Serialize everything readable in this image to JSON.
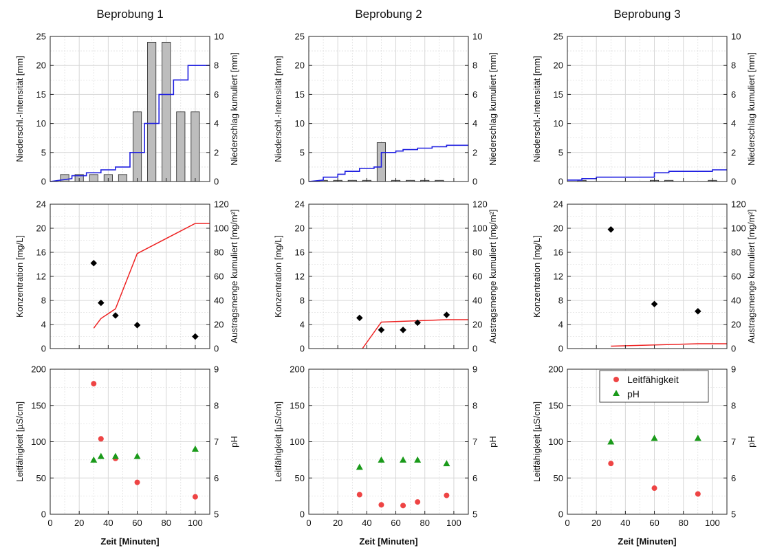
{
  "colors": {
    "bar_fill": "#bdbdbd",
    "bar_stroke": "#333333",
    "cumulative_rain": "#1f1fe0",
    "cumulative_load": "#ee2222",
    "concentration": "#000000",
    "conductivity": "#ee4444",
    "ph": "#1a9a1a",
    "grid": "#d6d6d6"
  },
  "labels": {
    "rain_left": "Niederschl.-Intensität [mm]",
    "rain_right": "Niederschlag kumuliert [mm]",
    "conc_left": "Konzentration [mg/L]",
    "conc_right": "Austragsmenge kumuliert [mg/m²]",
    "cond_left": "Leitfähigkeit [µS/cm]",
    "cond_right": "pH",
    "x": "Zeit [Minuten]"
  },
  "legend": {
    "conductivity": "Leitfähigkeit",
    "ph": "pH"
  },
  "chart_data": [
    {
      "title": "Beprobung 1",
      "rain": {
        "type": "bar",
        "ylim_left": [
          0,
          25
        ],
        "ylim_right": [
          0,
          10
        ],
        "bars": [
          {
            "x": 10,
            "y": 1.2
          },
          {
            "x": 20,
            "y": 1.2
          },
          {
            "x": 30,
            "y": 1.2
          },
          {
            "x": 40,
            "y": 1.2
          },
          {
            "x": 50,
            "y": 1.2
          },
          {
            "x": 60,
            "y": 12
          },
          {
            "x": 70,
            "y": 24
          },
          {
            "x": 80,
            "y": 24
          },
          {
            "x": 90,
            "y": 12
          },
          {
            "x": 100,
            "y": 12
          }
        ],
        "cumulative": [
          [
            0,
            0
          ],
          [
            15,
            0.2
          ],
          [
            15,
            0.4
          ],
          [
            25,
            0.4
          ],
          [
            25,
            0.6
          ],
          [
            35,
            0.6
          ],
          [
            35,
            0.8
          ],
          [
            45,
            0.8
          ],
          [
            45,
            1.0
          ],
          [
            55,
            1.0
          ],
          [
            55,
            2.0
          ],
          [
            65,
            2.0
          ],
          [
            65,
            4.0
          ],
          [
            75,
            4.0
          ],
          [
            75,
            6.0
          ],
          [
            85,
            6.0
          ],
          [
            85,
            7.0
          ],
          [
            95,
            7.0
          ],
          [
            95,
            8.0
          ],
          [
            110,
            8.0
          ]
        ]
      },
      "concentration": {
        "type": "scatter",
        "ylim_left": [
          0,
          24
        ],
        "ylim_right": [
          0,
          120
        ],
        "points": [
          [
            30,
            14.2
          ],
          [
            35,
            7.6
          ],
          [
            45,
            5.5
          ],
          [
            60,
            3.9
          ],
          [
            100,
            2.0
          ]
        ],
        "cumulative_load": [
          [
            30,
            17
          ],
          [
            35,
            25
          ],
          [
            45,
            33
          ],
          [
            60,
            79
          ],
          [
            100,
            104
          ],
          [
            110,
            104
          ]
        ]
      },
      "conductivity": {
        "type": "scatter",
        "ylim_left": [
          0,
          200
        ],
        "ylim_right": [
          5,
          9
        ],
        "conductivity": [
          [
            30,
            180
          ],
          [
            35,
            104
          ],
          [
            45,
            77
          ],
          [
            60,
            44
          ],
          [
            100,
            24
          ]
        ],
        "ph": [
          [
            30,
            6.5
          ],
          [
            35,
            6.6
          ],
          [
            45,
            6.6
          ],
          [
            60,
            6.6
          ],
          [
            100,
            6.8
          ]
        ]
      }
    },
    {
      "title": "Beprobung 2",
      "rain": {
        "type": "bar",
        "ylim_left": [
          0,
          25
        ],
        "ylim_right": [
          0,
          10
        ],
        "bars": [
          {
            "x": 10,
            "y": 0.2
          },
          {
            "x": 20,
            "y": 0.2
          },
          {
            "x": 30,
            "y": 0.2
          },
          {
            "x": 40,
            "y": 0.2
          },
          {
            "x": 50,
            "y": 6.7
          },
          {
            "x": 60,
            "y": 0.2
          },
          {
            "x": 70,
            "y": 0.2
          },
          {
            "x": 80,
            "y": 0.2
          },
          {
            "x": 90,
            "y": 0.2
          }
        ],
        "cumulative": [
          [
            0,
            0
          ],
          [
            10,
            0.1
          ],
          [
            10,
            0.3
          ],
          [
            20,
            0.3
          ],
          [
            20,
            0.5
          ],
          [
            25,
            0.5
          ],
          [
            25,
            0.7
          ],
          [
            35,
            0.7
          ],
          [
            35,
            0.9
          ],
          [
            45,
            0.9
          ],
          [
            45,
            1.0
          ],
          [
            50,
            1.0
          ],
          [
            50,
            2.0
          ],
          [
            60,
            2.0
          ],
          [
            60,
            2.1
          ],
          [
            65,
            2.1
          ],
          [
            65,
            2.2
          ],
          [
            75,
            2.2
          ],
          [
            75,
            2.3
          ],
          [
            85,
            2.3
          ],
          [
            85,
            2.4
          ],
          [
            95,
            2.4
          ],
          [
            95,
            2.5
          ],
          [
            110,
            2.5
          ]
        ]
      },
      "concentration": {
        "type": "scatter",
        "ylim_left": [
          0,
          24
        ],
        "ylim_right": [
          0,
          120
        ],
        "points": [
          [
            35,
            5.1
          ],
          [
            50,
            3.1
          ],
          [
            65,
            3.1
          ],
          [
            75,
            4.3
          ],
          [
            95,
            5.6
          ]
        ],
        "cumulative_load": [
          [
            37,
            0
          ],
          [
            50,
            22
          ],
          [
            95,
            24
          ],
          [
            110,
            24
          ]
        ]
      },
      "conductivity": {
        "type": "scatter",
        "ylim_left": [
          0,
          200
        ],
        "ylim_right": [
          5,
          9
        ],
        "conductivity": [
          [
            35,
            27
          ],
          [
            50,
            13
          ],
          [
            65,
            12
          ],
          [
            75,
            17
          ],
          [
            95,
            26
          ]
        ],
        "ph": [
          [
            35,
            6.3
          ],
          [
            50,
            6.5
          ],
          [
            65,
            6.5
          ],
          [
            75,
            6.5
          ],
          [
            95,
            6.4
          ]
        ]
      }
    },
    {
      "title": "Beprobung 3",
      "rain": {
        "type": "bar",
        "ylim_left": [
          0,
          25
        ],
        "ylim_right": [
          0,
          10
        ],
        "bars": [
          {
            "x": 10,
            "y": 0.2
          },
          {
            "x": 60,
            "y": 0.2
          },
          {
            "x": 70,
            "y": 0.2
          },
          {
            "x": 100,
            "y": 0.2
          }
        ],
        "cumulative": [
          [
            0,
            0.1
          ],
          [
            10,
            0.1
          ],
          [
            10,
            0.2
          ],
          [
            20,
            0.2
          ],
          [
            20,
            0.3
          ],
          [
            60,
            0.3
          ],
          [
            60,
            0.6
          ],
          [
            70,
            0.6
          ],
          [
            70,
            0.7
          ],
          [
            100,
            0.7
          ],
          [
            100,
            0.8
          ],
          [
            110,
            0.8
          ]
        ]
      },
      "concentration": {
        "type": "scatter",
        "ylim_left": [
          0,
          24
        ],
        "ylim_right": [
          0,
          120
        ],
        "points": [
          [
            30,
            19.8
          ],
          [
            60,
            7.4
          ],
          [
            90,
            6.2
          ]
        ],
        "cumulative_load": [
          [
            30,
            2
          ],
          [
            60,
            3
          ],
          [
            90,
            4
          ],
          [
            110,
            4
          ]
        ]
      },
      "conductivity": {
        "type": "scatter",
        "ylim_left": [
          0,
          200
        ],
        "ylim_right": [
          5,
          9
        ],
        "conductivity": [
          [
            30,
            70
          ],
          [
            60,
            36
          ],
          [
            90,
            28
          ]
        ],
        "ph": [
          [
            30,
            7.0
          ],
          [
            60,
            7.1
          ],
          [
            90,
            7.1
          ]
        ]
      }
    }
  ]
}
